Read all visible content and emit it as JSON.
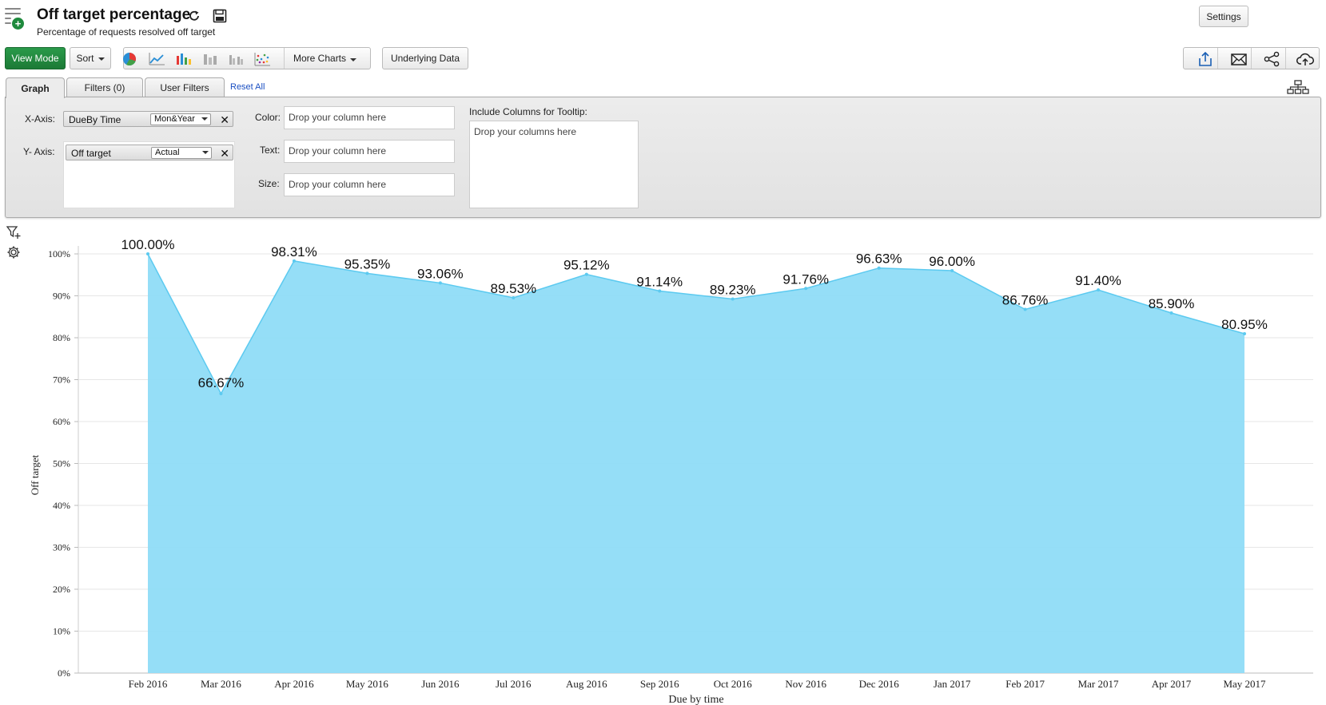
{
  "header": {
    "title": "Off target percentage",
    "subtitle": "Percentage of requests resolved off target",
    "settings_label": "Settings"
  },
  "toolbar": {
    "view_mode_label": "View Mode",
    "sort_label": "Sort",
    "more_charts_label": "More Charts",
    "underlying_data_label": "Underlying Data",
    "chart_type_icons": [
      "pie-chart-icon",
      "line-chart-icon",
      "bar-chart-icon",
      "stacked-bar-chart-icon",
      "grouped-bar-chart-icon",
      "scatter-chart-icon"
    ],
    "share_icons": [
      "export-icon",
      "email-icon",
      "share-icon",
      "cloud-upload-icon"
    ]
  },
  "tabs": [
    {
      "label": "Graph",
      "active": true
    },
    {
      "label": "Filters  (0)",
      "active": false
    },
    {
      "label": "User Filters",
      "active": false
    }
  ],
  "reset_all_label": "Reset All",
  "config": {
    "x_axis_label": "X-Axis:",
    "y_axis_label": "Y- Axis:",
    "x_column": "DueBy Time",
    "x_agg": "Mon&Year",
    "y_column": "Off target",
    "y_agg": "Actual",
    "color_label": "Color:",
    "text_label": "Text:",
    "size_label": "Size:",
    "drop_column_placeholder": "Drop your column here",
    "tooltip_label": "Include Columns for Tooltip:",
    "tooltip_placeholder": "Drop your columns here"
  },
  "colors": {
    "area_fill": "#8fdcf7",
    "area_stroke": "#5ccaf0",
    "accent_green": "#1e8a3d",
    "link_blue": "#1a4fc2"
  },
  "chart_data": {
    "type": "area",
    "categories": [
      "Feb 2016",
      "Mar 2016",
      "Apr 2016",
      "May 2016",
      "Jun 2016",
      "Jul 2016",
      "Aug 2016",
      "Sep 2016",
      "Oct 2016",
      "Nov 2016",
      "Dec 2016",
      "Jan 2017",
      "Feb 2017",
      "Mar 2017",
      "Apr 2017",
      "May 2017"
    ],
    "values": [
      100.0,
      66.67,
      98.31,
      95.35,
      93.06,
      89.53,
      95.12,
      91.14,
      89.23,
      91.76,
      96.63,
      96.0,
      86.76,
      91.4,
      85.9,
      80.95
    ],
    "data_labels": [
      "100.00%",
      "66.67%",
      "98.31%",
      "95.35%",
      "93.06%",
      "89.53%",
      "95.12%",
      "91.14%",
      "89.23%",
      "91.76%",
      "96.63%",
      "96.00%",
      "86.76%",
      "91.40%",
      "85.90%",
      "80.95%"
    ],
    "xlabel": "Due by time",
    "ylabel": "Off target",
    "ylim": [
      0,
      100
    ],
    "yticks": [
      "0%",
      "10%",
      "20%",
      "30%",
      "40%",
      "50%",
      "60%",
      "70%",
      "80%",
      "90%",
      "100%"
    ],
    "grid": true
  }
}
